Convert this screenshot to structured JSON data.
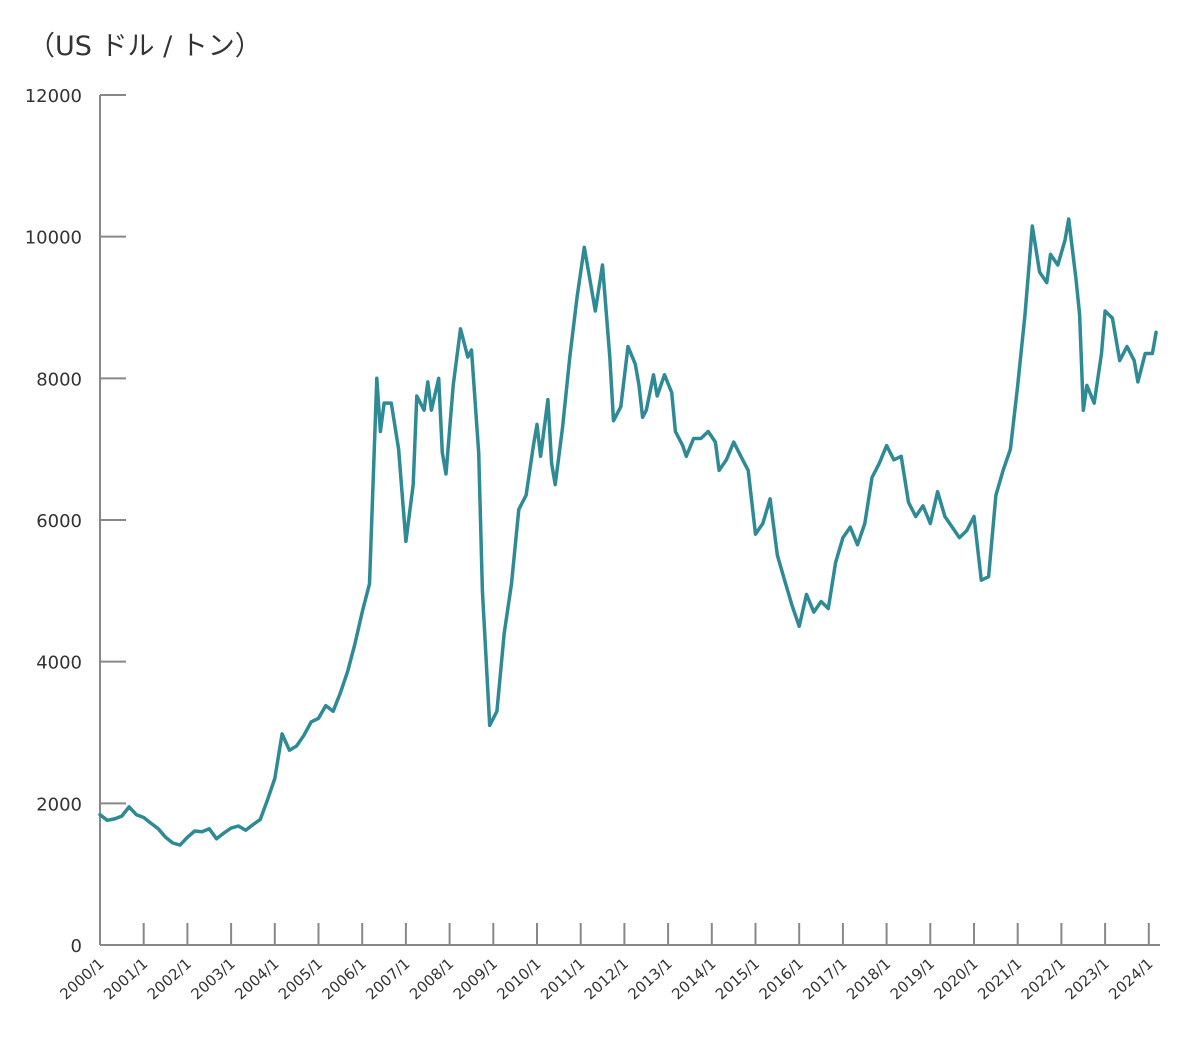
{
  "chart_data": {
    "type": "line",
    "unit_label": "（US ドル / トン）",
    "ylim": [
      0,
      12000
    ],
    "y_ticks": [
      "12000",
      "10000",
      "8000",
      "6000",
      "4000",
      "2000",
      "0"
    ],
    "x_ticks": [
      "2000/1",
      "2001/1",
      "2002/1",
      "2003/1",
      "2004/1",
      "2005/1",
      "2006/1",
      "2007/1",
      "2008/1",
      "2009/1",
      "2010/1",
      "2011/1",
      "2012/1",
      "2013/1",
      "2014/1",
      "2015/1",
      "2016/1",
      "2017/1",
      "2018/1",
      "2019/1",
      "2020/1",
      "2021/1",
      "2022/1",
      "2023/1",
      "2024/1"
    ],
    "line_color": "#2e8b95",
    "axis_color": "#888888",
    "grid": false,
    "series": [
      {
        "points": [
          [
            "2000/1",
            1840
          ],
          [
            "2000/3",
            1760
          ],
          [
            "2000/5",
            1780
          ],
          [
            "2000/7",
            1820
          ],
          [
            "2000/9",
            1950
          ],
          [
            "2000/11",
            1840
          ],
          [
            "2001/1",
            1800
          ],
          [
            "2001/3",
            1720
          ],
          [
            "2001/5",
            1640
          ],
          [
            "2001/7",
            1520
          ],
          [
            "2001/9",
            1440
          ],
          [
            "2001/11",
            1410
          ],
          [
            "2002/1",
            1520
          ],
          [
            "2002/3",
            1610
          ],
          [
            "2002/5",
            1600
          ],
          [
            "2002/7",
            1640
          ],
          [
            "2002/9",
            1500
          ],
          [
            "2002/11",
            1580
          ],
          [
            "2003/1",
            1650
          ],
          [
            "2003/3",
            1680
          ],
          [
            "2003/5",
            1620
          ],
          [
            "2003/7",
            1700
          ],
          [
            "2003/9",
            1770
          ],
          [
            "2003/11",
            2050
          ],
          [
            "2004/1",
            2350
          ],
          [
            "2004/3",
            2980
          ],
          [
            "2004/5",
            2750
          ],
          [
            "2004/7",
            2810
          ],
          [
            "2004/9",
            2960
          ],
          [
            "2004/11",
            3150
          ],
          [
            "2005/1",
            3200
          ],
          [
            "2005/3",
            3380
          ],
          [
            "2005/5",
            3300
          ],
          [
            "2005/7",
            3560
          ],
          [
            "2005/9",
            3860
          ],
          [
            "2005/11",
            4250
          ],
          [
            "2006/1",
            4700
          ],
          [
            "2006/3",
            5100
          ],
          [
            "2006/5",
            8000
          ],
          [
            "2006/6",
            7250
          ],
          [
            "2006/7",
            7650
          ],
          [
            "2006/9",
            7650
          ],
          [
            "2006/11",
            7000
          ],
          [
            "2007/1",
            5700
          ],
          [
            "2007/3",
            6500
          ],
          [
            "2007/4",
            7750
          ],
          [
            "2007/6",
            7550
          ],
          [
            "2007/7",
            7950
          ],
          [
            "2007/8",
            7550
          ],
          [
            "2007/10",
            8000
          ],
          [
            "2007/11",
            6950
          ],
          [
            "2007/12",
            6650
          ],
          [
            "2008/2",
            7900
          ],
          [
            "2008/4",
            8700
          ],
          [
            "2008/6",
            8300
          ],
          [
            "2008/7",
            8400
          ],
          [
            "2008/9",
            6950
          ],
          [
            "2008/10",
            5000
          ],
          [
            "2008/12",
            3100
          ],
          [
            "2009/2",
            3300
          ],
          [
            "2009/4",
            4400
          ],
          [
            "2009/6",
            5100
          ],
          [
            "2009/8",
            6150
          ],
          [
            "2009/10",
            6350
          ],
          [
            "2009/12",
            7050
          ],
          [
            "2010/1",
            7350
          ],
          [
            "2010/2",
            6900
          ],
          [
            "2010/4",
            7700
          ],
          [
            "2010/5",
            6800
          ],
          [
            "2010/6",
            6500
          ],
          [
            "2010/8",
            7300
          ],
          [
            "2010/10",
            8300
          ],
          [
            "2010/12",
            9150
          ],
          [
            "2011/2",
            9850
          ],
          [
            "2011/3",
            9550
          ],
          [
            "2011/5",
            8950
          ],
          [
            "2011/7",
            9600
          ],
          [
            "2011/9",
            8300
          ],
          [
            "2011/10",
            7400
          ],
          [
            "2011/12",
            7600
          ],
          [
            "2012/2",
            8450
          ],
          [
            "2012/4",
            8200
          ],
          [
            "2012/5",
            7900
          ],
          [
            "2012/6",
            7450
          ],
          [
            "2012/7",
            7550
          ],
          [
            "2012/9",
            8050
          ],
          [
            "2012/10",
            7750
          ],
          [
            "2012/12",
            8050
          ],
          [
            "2013/2",
            7800
          ],
          [
            "2013/3",
            7250
          ],
          [
            "2013/5",
            7050
          ],
          [
            "2013/6",
            6900
          ],
          [
            "2013/8",
            7150
          ],
          [
            "2013/10",
            7150
          ],
          [
            "2013/12",
            7250
          ],
          [
            "2014/2",
            7100
          ],
          [
            "2014/3",
            6700
          ],
          [
            "2014/5",
            6850
          ],
          [
            "2014/7",
            7100
          ],
          [
            "2014/9",
            6900
          ],
          [
            "2014/11",
            6700
          ],
          [
            "2015/1",
            5800
          ],
          [
            "2015/3",
            5950
          ],
          [
            "2015/5",
            6300
          ],
          [
            "2015/7",
            5500
          ],
          [
            "2015/9",
            5150
          ],
          [
            "2015/11",
            4800
          ],
          [
            "2016/1",
            4500
          ],
          [
            "2016/3",
            4950
          ],
          [
            "2016/5",
            4700
          ],
          [
            "2016/7",
            4850
          ],
          [
            "2016/9",
            4750
          ],
          [
            "2016/11",
            5400
          ],
          [
            "2017/1",
            5750
          ],
          [
            "2017/3",
            5900
          ],
          [
            "2017/5",
            5650
          ],
          [
            "2017/7",
            5950
          ],
          [
            "2017/9",
            6600
          ],
          [
            "2017/11",
            6800
          ],
          [
            "2018/1",
            7050
          ],
          [
            "2018/3",
            6850
          ],
          [
            "2018/5",
            6900
          ],
          [
            "2018/7",
            6250
          ],
          [
            "2018/9",
            6050
          ],
          [
            "2018/11",
            6200
          ],
          [
            "2019/1",
            5950
          ],
          [
            "2019/3",
            6400
          ],
          [
            "2019/5",
            6050
          ],
          [
            "2019/7",
            5900
          ],
          [
            "2019/9",
            5750
          ],
          [
            "2019/11",
            5850
          ],
          [
            "2020/1",
            6050
          ],
          [
            "2020/3",
            5150
          ],
          [
            "2020/5",
            5200
          ],
          [
            "2020/7",
            6350
          ],
          [
            "2020/9",
            6700
          ],
          [
            "2020/11",
            7000
          ],
          [
            "2021/1",
            7900
          ],
          [
            "2021/3",
            8900
          ],
          [
            "2021/5",
            10150
          ],
          [
            "2021/7",
            9500
          ],
          [
            "2021/9",
            9350
          ],
          [
            "2021/10",
            9750
          ],
          [
            "2021/12",
            9600
          ],
          [
            "2022/2",
            9950
          ],
          [
            "2022/3",
            10250
          ],
          [
            "2022/5",
            9400
          ],
          [
            "2022/6",
            8900
          ],
          [
            "2022/7",
            7550
          ],
          [
            "2022/8",
            7900
          ],
          [
            "2022/10",
            7650
          ],
          [
            "2022/12",
            8350
          ],
          [
            "2023/1",
            8950
          ],
          [
            "2023/3",
            8850
          ],
          [
            "2023/5",
            8250
          ],
          [
            "2023/7",
            8450
          ],
          [
            "2023/9",
            8250
          ],
          [
            "2023/10",
            7950
          ],
          [
            "2023/12",
            8350
          ],
          [
            "2024/2",
            8350
          ],
          [
            "2024/3",
            8650
          ]
        ]
      }
    ]
  }
}
